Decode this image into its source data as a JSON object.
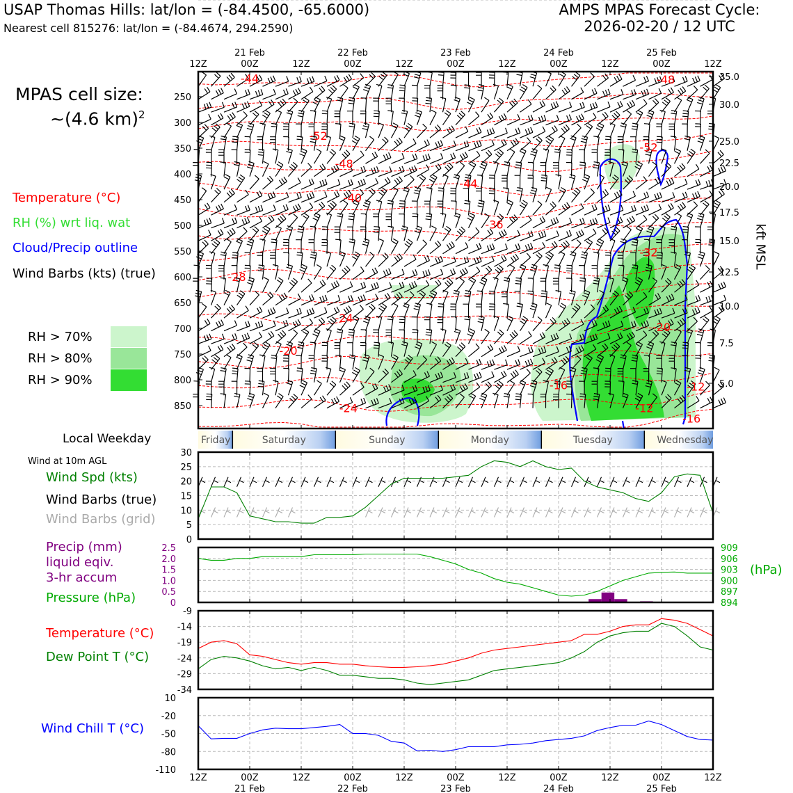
{
  "header": {
    "station": "USAP Thomas Hills: lat/lon = (-84.4500, -65.6000)",
    "nearest": "Nearest cell 815276: lat/lon = (-84.4674, 294.2590)",
    "model_line": "AMPS MPAS Forecast Cycle:",
    "cycle_line": "2026-02-20 / 12 UTC"
  },
  "left_labels": {
    "cell_size_line1": "MPAS cell size:",
    "cell_size_line2": "~(4.6 km)",
    "cell_size_sup": "2",
    "temperature": "Temperature (°C)",
    "rh": "RH (%) wrt liq. wat",
    "cloud": "Cloud/Precip outline",
    "wind_barbs": "Wind Barbs (kts) (true)",
    "rh70": "RH > 70%",
    "rh80": "RH > 80%",
    "rh90": "RH > 90%",
    "local_weekday": "Local Weekday",
    "wind10m": "Wind at 10m AGL",
    "wind_spd": "Wind Spd (kts)",
    "wind_true": "Wind Barbs (true)",
    "wind_grid": "Wind Barbs (grid)",
    "precip1": "Precip (mm)",
    "precip2": "liquid eqiv.",
    "precip3": "3-hr accum",
    "pressure": "Pressure (hPa)",
    "temp2": "Temperature (°C)",
    "dewpoint": "Dew Point T (°C)",
    "windchill": "Wind Chill T (°C)",
    "right_kft": "kft MSL",
    "right_hpa": "(hPa)"
  },
  "colors": {
    "temperature": "#ff0000",
    "rh_label": "#33dd33",
    "cloud": "#0000ff",
    "rh70": "#ccf5cc",
    "rh80": "#99e699",
    "rh90": "#33dd33",
    "wind_speed": "#008000",
    "wind_grid": "#aaaaaa",
    "precip": "#800080",
    "pressure": "#00aa00",
    "dewpoint": "#008000",
    "windchill": "#0000ff"
  },
  "time_axis": {
    "ticks": [
      "12Z",
      "00Z",
      "12Z",
      "00Z",
      "12Z",
      "00Z",
      "12Z",
      "00Z",
      "12Z",
      "00Z",
      "12Z"
    ],
    "dates": [
      "21 Feb",
      "22 Feb",
      "23 Feb",
      "24 Feb",
      "25 Feb"
    ]
  },
  "weekdays": [
    "Friday",
    "Saturday",
    "Sunday",
    "Monday",
    "Tuesday",
    "Wednesday"
  ],
  "chart_data": [
    {
      "type": "heatmap",
      "name": "time-height cross section",
      "x_range_hours": [
        0,
        120
      ],
      "pressure_ticks": [
        250,
        300,
        350,
        400,
        450,
        500,
        550,
        600,
        650,
        700,
        750,
        800,
        850
      ],
      "kft_ticks": [
        "35.0",
        "30.0",
        "25.0",
        "22.5",
        "20.0",
        "17.5",
        "15.0",
        "12.5",
        "10.0",
        "7.5",
        "5.0"
      ],
      "temperature_labels": [
        {
          "t": "-44",
          "h": 12,
          "p": 214
        },
        {
          "t": "-48",
          "h": 109,
          "p": 216
        },
        {
          "t": "-52",
          "h": 28,
          "p": 326
        },
        {
          "t": "-52",
          "h": 105,
          "p": 348
        },
        {
          "t": "-48",
          "h": 34,
          "p": 380
        },
        {
          "t": "-44",
          "h": 63,
          "p": 418
        },
        {
          "t": "-40",
          "h": 36,
          "p": 446
        },
        {
          "t": "-36",
          "h": 69,
          "p": 498
        },
        {
          "t": "-32",
          "h": 105,
          "p": 552
        },
        {
          "t": "-28",
          "h": 9,
          "p": 600
        },
        {
          "t": "-24",
          "h": 34,
          "p": 680
        },
        {
          "t": "-20",
          "h": 108,
          "p": 697
        },
        {
          "t": "-20",
          "h": 21,
          "p": 743
        },
        {
          "t": "-16",
          "h": 84,
          "p": 810
        },
        {
          "t": "-12",
          "h": 116,
          "p": 813
        },
        {
          "t": "-24",
          "h": 35,
          "p": 855
        },
        {
          "t": "-12",
          "h": 104,
          "p": 855
        },
        {
          "t": "-16",
          "h": 115,
          "p": 875
        }
      ]
    },
    {
      "type": "line",
      "name": "wind speed 10m",
      "ylim": [
        0,
        30
      ],
      "yticks": [
        0,
        5,
        10,
        15,
        20,
        25,
        30
      ],
      "x": [
        0,
        3,
        6,
        9,
        12,
        15,
        18,
        21,
        24,
        27,
        30,
        33,
        36,
        39,
        42,
        45,
        48,
        51,
        54,
        57,
        60,
        63,
        66,
        69,
        72,
        75,
        78,
        81,
        84,
        87,
        90,
        93,
        96,
        99,
        102,
        105,
        108,
        111,
        114,
        117,
        120
      ],
      "values": [
        7,
        18,
        18,
        16,
        8,
        7,
        6,
        6,
        5.5,
        5.5,
        7.5,
        7.5,
        8,
        11,
        15,
        19,
        21,
        21,
        21,
        21,
        21.5,
        22,
        25,
        27,
        26.5,
        25,
        27,
        25,
        24,
        24.5,
        20,
        18,
        17,
        16,
        14,
        13,
        16,
        21.5,
        22.5,
        22,
        9
      ]
    },
    {
      "type": "bar",
      "name": "precip 3-hr accum",
      "ylim": [
        0,
        2.5
      ],
      "yticks": [
        0,
        0.5,
        1.0,
        1.5,
        2.0,
        2.5
      ],
      "bars": [
        {
          "h": 91,
          "v": 0.15
        },
        {
          "h": 94,
          "v": 0.45
        },
        {
          "h": 97,
          "v": 0.15
        },
        {
          "h": 103,
          "v": 0.05
        }
      ]
    },
    {
      "type": "line",
      "name": "pressure",
      "ylim": [
        894,
        909
      ],
      "yticks": [
        894,
        897,
        900,
        903,
        906,
        909
      ],
      "x": [
        0,
        3,
        6,
        9,
        12,
        15,
        18,
        21,
        24,
        27,
        30,
        33,
        36,
        39,
        42,
        45,
        48,
        51,
        54,
        57,
        60,
        63,
        66,
        69,
        72,
        75,
        78,
        81,
        84,
        87,
        90,
        93,
        96,
        99,
        102,
        105,
        108,
        111,
        114,
        117,
        120
      ],
      "values": [
        906,
        905.5,
        905.5,
        906,
        906,
        906.5,
        906.5,
        906.5,
        906.5,
        907,
        907,
        907,
        907,
        907.2,
        907.2,
        907.2,
        907.2,
        907.2,
        906.5,
        905.5,
        904.5,
        903,
        902,
        900.5,
        899.5,
        899,
        898,
        897,
        896,
        895.7,
        896,
        897,
        898.5,
        900,
        901,
        902,
        902.2,
        902.3,
        902,
        902,
        902
      ]
    },
    {
      "type": "line",
      "name": "temperature and dew point",
      "ylim": [
        -34,
        -9
      ],
      "yticks": [
        -34,
        -29,
        -24,
        -19,
        -14,
        -9
      ],
      "x": [
        0,
        3,
        6,
        9,
        12,
        15,
        18,
        21,
        24,
        27,
        30,
        33,
        36,
        39,
        42,
        45,
        48,
        51,
        54,
        57,
        60,
        63,
        66,
        69,
        72,
        75,
        78,
        81,
        84,
        87,
        90,
        93,
        96,
        99,
        102,
        105,
        108,
        111,
        114,
        117,
        120
      ],
      "series": [
        {
          "name": "Temperature",
          "values": [
            -21,
            -19,
            -18.5,
            -19.5,
            -23,
            -23.5,
            -24.5,
            -25.5,
            -26,
            -25.5,
            -25.5,
            -26,
            -26,
            -26.5,
            -26.8,
            -27,
            -27,
            -26.8,
            -26.5,
            -26,
            -25,
            -24,
            -22.5,
            -21.5,
            -21,
            -20.5,
            -20,
            -19.5,
            -19,
            -18.5,
            -16.5,
            -16.5,
            -15.5,
            -14,
            -13.5,
            -13.5,
            -11.5,
            -12,
            -13,
            -15,
            -17
          ]
        },
        {
          "name": "Dew Point",
          "values": [
            -27.5,
            -24.5,
            -23.5,
            -24,
            -25,
            -26.5,
            -27.5,
            -27,
            -28,
            -27,
            -28,
            -29.5,
            -29.5,
            -30,
            -30.5,
            -30.5,
            -31,
            -32,
            -32.5,
            -32,
            -31.5,
            -31,
            -29.5,
            -28,
            -27.5,
            -27,
            -26.5,
            -26,
            -25.5,
            -24,
            -22,
            -19,
            -17,
            -16,
            -15.5,
            -15.5,
            -13,
            -14,
            -17,
            -20.5,
            -21.5
          ]
        }
      ]
    },
    {
      "type": "line",
      "name": "wind chill",
      "ylim": [
        -110,
        10
      ],
      "yticks": [
        -110,
        -80,
        -50,
        -20,
        10
      ],
      "x": [
        0,
        3,
        6,
        9,
        12,
        15,
        18,
        21,
        24,
        27,
        30,
        33,
        36,
        39,
        42,
        45,
        48,
        51,
        54,
        57,
        60,
        63,
        66,
        69,
        72,
        75,
        78,
        81,
        84,
        87,
        90,
        93,
        96,
        99,
        102,
        105,
        108,
        111,
        114,
        117,
        120
      ],
      "values": [
        -37,
        -59,
        -58,
        -58,
        -50,
        -44,
        -41,
        -42,
        -42,
        -40,
        -38,
        -35,
        -50,
        -50,
        -53,
        -63,
        -66,
        -79,
        -78,
        -80,
        -77,
        -72,
        -72,
        -72,
        -69,
        -68,
        -66,
        -62,
        -60,
        -58,
        -54,
        -45,
        -40,
        -36,
        -36,
        -29,
        -35,
        -45,
        -55,
        -60,
        -61
      ]
    }
  ]
}
